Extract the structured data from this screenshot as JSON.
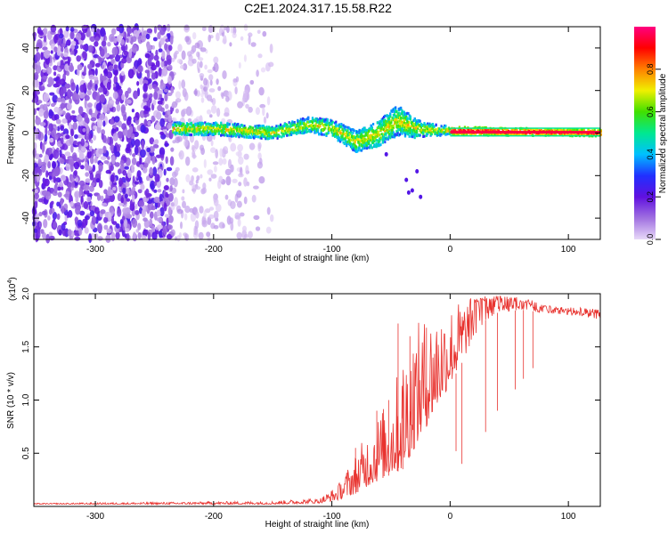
{
  "page_title": "C2E1.2024.317.15.58.R22",
  "chart_data": [
    {
      "type": "heatmap",
      "panel": "top",
      "xlabel": "Height of straight line (km)",
      "ylabel": "Frequency (Hz)",
      "xlim": [
        -352,
        127
      ],
      "ylim": [
        -50,
        50
      ],
      "x_ticks": [
        -300,
        -200,
        -100,
        0,
        100
      ],
      "y_ticks": [
        -40,
        -20,
        0,
        20,
        40
      ],
      "colorbar": {
        "label": "Normalized spectral amplitude",
        "range": [
          0,
          1
        ],
        "ticks": [
          "0.0",
          "0.2",
          "0.4",
          "0.6",
          "0.8"
        ],
        "colors": [
          "#e8d8f8",
          "#a070e0",
          "#6010e0",
          "#2030ff",
          "#00c0ff",
          "#00e890",
          "#40e000",
          "#f0f000",
          "#ff8000",
          "#ff0000",
          "#ff0080"
        ]
      },
      "features": {
        "noise_region_x": [
          -352,
          -150
        ],
        "noise_dense_x": [
          -352,
          -235
        ],
        "signal_band": {
          "x": [
            -235,
            127
          ],
          "center_freq": [
            [
              -235,
              2
            ],
            [
              -200,
              2
            ],
            [
              -150,
              0
            ],
            [
              -120,
              4
            ],
            [
              -100,
              2
            ],
            [
              -80,
              -4
            ],
            [
              -60,
              0
            ],
            [
              -45,
              6
            ],
            [
              -30,
              2
            ],
            [
              0,
              1
            ],
            [
              127,
              0
            ]
          ],
          "half_width": [
            [
              -235,
              3
            ],
            [
              -150,
              3
            ],
            [
              -100,
              4
            ],
            [
              -80,
              5
            ],
            [
              -45,
              7
            ],
            [
              -20,
              3
            ],
            [
              0,
              2
            ],
            [
              127,
              1.5
            ]
          ]
        },
        "stray_points": [
          [
            -37,
            -22
          ],
          [
            -35,
            -28
          ],
          [
            -32,
            -27
          ],
          [
            -25,
            -30
          ],
          [
            -28,
            -18
          ],
          [
            -54,
            -10
          ]
        ]
      }
    },
    {
      "type": "line",
      "panel": "bottom",
      "xlabel": "Height of straight line (km)",
      "ylabel": "SNR (10 * v/v)",
      "y_multiplier": "(x10",
      "y_multiplier_exp": "4",
      "xlim": [
        -352,
        127
      ],
      "ylim": [
        0,
        2.0
      ],
      "x_ticks": [
        -300,
        -200,
        -100,
        0,
        100
      ],
      "y_ticks": [
        0.5,
        1.0,
        1.5,
        2.0
      ],
      "line_color": "#e8332f",
      "envelope": {
        "x": [
          -352,
          -250,
          -150,
          -110,
          -95,
          -80,
          -65,
          -50,
          -40,
          -30,
          -20,
          -10,
          0,
          10,
          20,
          30,
          40,
          60,
          80,
          100,
          127
        ],
        "base": [
          0.02,
          0.02,
          0.02,
          0.03,
          0.06,
          0.12,
          0.22,
          0.3,
          0.35,
          0.55,
          0.75,
          0.95,
          1.15,
          1.35,
          1.6,
          1.75,
          1.82,
          1.85,
          1.82,
          1.8,
          1.76
        ],
        "peak": [
          0.03,
          0.04,
          0.05,
          0.08,
          0.2,
          0.5,
          0.8,
          1.05,
          1.45,
          1.7,
          1.8,
          1.88,
          1.9,
          1.95,
          1.97,
          1.98,
          1.98,
          1.97,
          1.9,
          1.88,
          1.85
        ]
      },
      "spikes": [
        [
          -80,
          0.55
        ],
        [
          -62,
          0.9
        ],
        [
          -52,
          1.0
        ],
        [
          -44,
          1.72
        ],
        [
          -40,
          1.05
        ],
        [
          -34,
          1.6
        ],
        [
          -20,
          1.68
        ],
        [
          5,
          0.52
        ],
        [
          10,
          0.4
        ],
        [
          30,
          0.7
        ],
        [
          40,
          0.9
        ],
        [
          55,
          1.1
        ],
        [
          62,
          1.2
        ],
        [
          70,
          1.3
        ]
      ]
    }
  ]
}
